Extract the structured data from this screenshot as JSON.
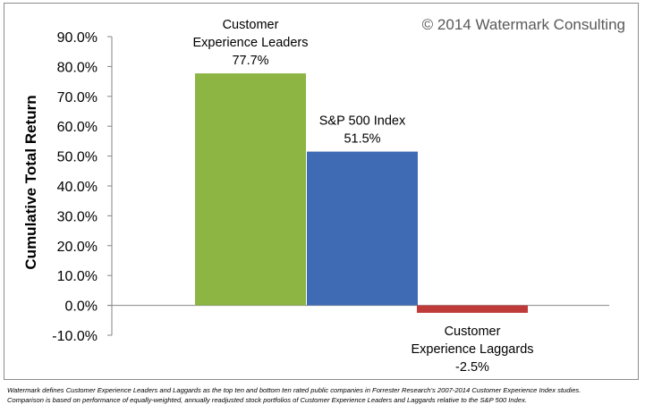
{
  "watermark": "© 2014 Watermark Consulting",
  "footnote": {
    "line1": "Watermark defines Customer Experience Leaders and Laggards as the top ten and bottom ten rated public companies in Forrester Research’s 2007-2014 Customer Experience Index studies.",
    "line2": "Comparison is based on performance of equally-weighted, annually readjusted stock portfolios of Customer Experience Leaders and Laggards relative to the S&P 500 Index."
  },
  "colors": {
    "leaders": "#8db543",
    "sp500": "#3f6bb5",
    "laggards": "#bf3b39"
  },
  "chart_data": {
    "type": "bar",
    "title": "",
    "xlabel": "",
    "ylabel": "Cumulative Total Return",
    "ylim": [
      -10,
      90
    ],
    "yticks": [
      -10,
      0,
      10,
      20,
      30,
      40,
      50,
      60,
      70,
      80,
      90
    ],
    "ytick_labels": [
      "-10.0%",
      "0.0%",
      "10.0%",
      "20.0%",
      "30.0%",
      "40.0%",
      "50.0%",
      "60.0%",
      "70.0%",
      "80.0%",
      "90.0%"
    ],
    "grid": false,
    "legend": "none",
    "categories": [
      "Customer Experience Leaders",
      "S&P 500 Index",
      "Customer Experience Laggards"
    ],
    "values": [
      77.7,
      51.5,
      -2.5
    ],
    "bar_labels": [
      [
        "Customer",
        "Experience Leaders",
        "77.7%"
      ],
      [
        "S&P 500 Index",
        "51.5%"
      ],
      [
        "Customer",
        "Experience Laggards",
        "-2.5%"
      ]
    ]
  }
}
